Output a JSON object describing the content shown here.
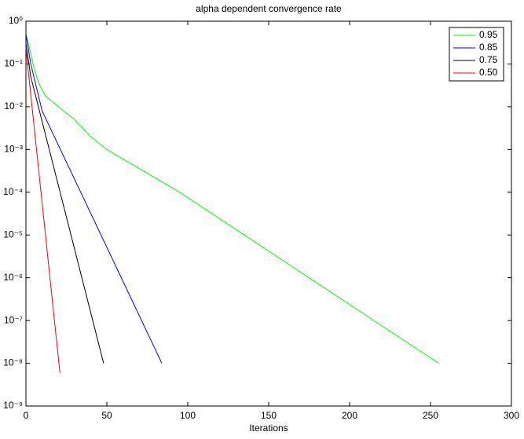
{
  "chart_data": {
    "type": "line",
    "title": "alpha dependent convergence rate",
    "x_label": "Iterations",
    "log_y": true,
    "legend": "upper right",
    "xlim": [
      0,
      300
    ],
    "xticks": [
      0,
      50,
      100,
      150,
      200,
      250,
      300
    ],
    "ylim": [
      1e-09,
      1
    ],
    "yticks": [
      {
        "value": 1,
        "label": "10⁰"
      },
      {
        "value": 0.1,
        "label": "10⁻¹"
      },
      {
        "value": 0.01,
        "label": "10⁻²"
      },
      {
        "value": 0.001,
        "label": "10⁻³"
      },
      {
        "value": 0.0001,
        "label": "10⁻⁴"
      },
      {
        "value": 1e-05,
        "label": "10⁻⁵"
      },
      {
        "value": 1e-06,
        "label": "10⁻⁶"
      },
      {
        "value": 1e-07,
        "label": "10⁻⁷"
      },
      {
        "value": 1e-08,
        "label": "10⁻⁸"
      },
      {
        "value": 1e-09,
        "label": "10⁻⁹"
      }
    ],
    "series": [
      {
        "name": "0.95",
        "color": "#00ff00",
        "x": [
          0,
          2,
          5,
          8,
          12,
          20,
          30,
          40,
          50,
          95,
          135,
          175,
          215,
          255
        ],
        "values": [
          0.5,
          0.25,
          0.08,
          0.035,
          0.018,
          0.01,
          0.005,
          0.002,
          0.001,
          0.0001,
          1e-05,
          1e-06,
          1e-07,
          1e-08
        ]
      },
      {
        "name": "0.85",
        "color": "#0000ff",
        "x": [
          0,
          3,
          10,
          84
        ],
        "values": [
          0.5,
          0.1,
          0.008,
          1e-08
        ]
      },
      {
        "name": "0.75",
        "color": "#000000",
        "x": [
          0,
          3,
          48
        ],
        "values": [
          0.3,
          0.05,
          1e-08
        ]
      },
      {
        "name": "0.50",
        "color": "#ff0000",
        "x": [
          0,
          1,
          21
        ],
        "values": [
          0.25,
          0.1,
          6e-09
        ]
      }
    ]
  }
}
